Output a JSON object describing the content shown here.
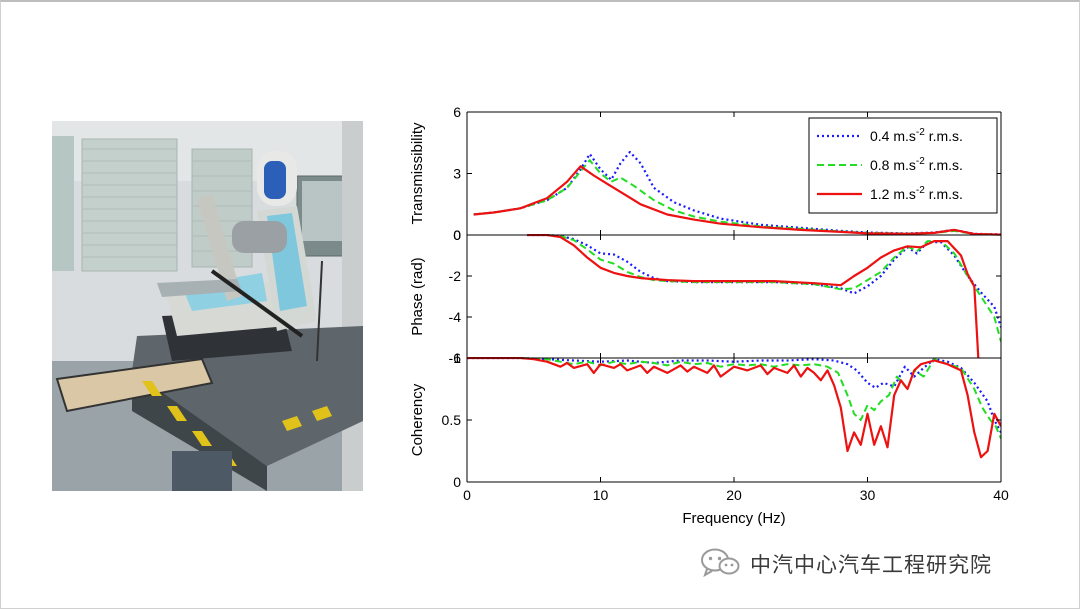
{
  "photo": {
    "icon": "seat-test-rig-photo"
  },
  "watermark": {
    "icon": "wechat-logo-icon",
    "text": "中汽中心汽车工程研究院"
  },
  "colors": {
    "series1": "#1a1aff",
    "series2": "#22dd22",
    "series3": "#ee1111"
  },
  "chart_data": {
    "type": "line",
    "xlabel": "Frequency (Hz)",
    "xlim": [
      0,
      40
    ],
    "xticks": [
      "0",
      "10",
      "20",
      "30",
      "40"
    ],
    "legend": {
      "position": "top-right",
      "entries": [
        {
          "base": "0.4 m.s",
          "sup": "-2",
          "tail": " r.m.s."
        },
        {
          "base": "0.8 m.s",
          "sup": "-2",
          "tail": " r.m.s."
        },
        {
          "base": "1.2 m.s",
          "sup": "-2",
          "tail": " r.m.s."
        }
      ]
    },
    "panels": [
      {
        "ylabel": "Transmissibility",
        "ylim": [
          0,
          6
        ],
        "yticks": [
          {
            "v": 0,
            "t": "0"
          },
          {
            "v": 3,
            "t": "3"
          },
          {
            "v": 6,
            "t": "6"
          }
        ],
        "series": [
          {
            "style": "dotted",
            "x": [
              0.5,
              2,
              4,
              6,
              7.5,
              8.5,
              9.2,
              10,
              10.8,
              11.5,
              12.2,
              13,
              14,
              15.5,
              17,
              19,
              22,
              25,
              28,
              30,
              33,
              35,
              36.5,
              38,
              40
            ],
            "y": [
              1.0,
              1.1,
              1.3,
              1.7,
              2.3,
              3.2,
              3.95,
              3.2,
              2.7,
              3.5,
              4.05,
              3.5,
              2.3,
              1.6,
              1.2,
              0.8,
              0.5,
              0.35,
              0.2,
              0.12,
              0.08,
              0.12,
              0.25,
              0.06,
              0.03
            ]
          },
          {
            "style": "dashed",
            "x": [
              0.5,
              2,
              4,
              6,
              7.5,
              8.5,
              9.2,
              10,
              10.8,
              11.5,
              12.5,
              14,
              15.5,
              17,
              19,
              22,
              25,
              28,
              30,
              33,
              35,
              36.5,
              38,
              40
            ],
            "y": [
              1.0,
              1.1,
              1.3,
              1.7,
              2.3,
              3.1,
              3.65,
              3.0,
              2.6,
              2.8,
              2.4,
              1.7,
              1.2,
              0.9,
              0.65,
              0.42,
              0.3,
              0.17,
              0.1,
              0.07,
              0.1,
              0.2,
              0.05,
              0.02
            ]
          },
          {
            "style": "solid",
            "x": [
              0.5,
              2,
              4,
              6,
              7.5,
              8.5,
              9.5,
              10.5,
              11.5,
              13,
              15,
              17,
              19,
              22,
              25,
              28,
              30,
              33,
              35,
              36.5,
              38,
              40
            ],
            "y": [
              1.0,
              1.1,
              1.3,
              1.8,
              2.6,
              3.35,
              2.9,
              2.5,
              2.1,
              1.5,
              1.0,
              0.75,
              0.55,
              0.38,
              0.25,
              0.15,
              0.08,
              0.06,
              0.1,
              0.25,
              0.05,
              0.02
            ]
          }
        ]
      },
      {
        "ylabel": "Phase (rad)",
        "ylim": [
          -6,
          0
        ],
        "yticks": [
          {
            "v": 0,
            "t": "0"
          },
          {
            "v": -2,
            "t": "-2"
          },
          {
            "v": -4,
            "t": "-4"
          },
          {
            "v": -6,
            "t": "-6"
          }
        ],
        "series": [
          {
            "style": "dotted",
            "x": [
              4.5,
              6,
              7,
              8,
              9,
              10,
              11,
              12,
              13,
              14,
              15,
              17,
              20,
              23,
              26,
              28,
              29,
              30,
              31,
              32,
              33,
              33.7,
              34.5,
              35.5,
              36.5,
              37.5,
              38.5,
              39.5,
              40
            ],
            "y": [
              0,
              0,
              -0.05,
              -0.2,
              -0.5,
              -0.9,
              -0.95,
              -1.3,
              -1.8,
              -2.1,
              -2.25,
              -2.3,
              -2.3,
              -2.3,
              -2.4,
              -2.6,
              -2.85,
              -2.5,
              -2.0,
              -1.2,
              -0.6,
              -0.9,
              -0.35,
              -0.35,
              -1.0,
              -2.0,
              -2.8,
              -3.5,
              -4.5
            ]
          },
          {
            "style": "dashed",
            "x": [
              4.5,
              6,
              7,
              8,
              9,
              10,
              11,
              12,
              13,
              14,
              15,
              17,
              20,
              23,
              26,
              28,
              29,
              30,
              31,
              32,
              33,
              33.7,
              34.5,
              35.5,
              36.5,
              37.5,
              38.5,
              39.5,
              40
            ],
            "y": [
              0,
              0,
              -0.05,
              -0.25,
              -0.7,
              -1.2,
              -1.4,
              -1.8,
              -2.05,
              -2.2,
              -2.25,
              -2.3,
              -2.3,
              -2.3,
              -2.4,
              -2.65,
              -2.6,
              -2.2,
              -1.8,
              -1.1,
              -0.55,
              -0.8,
              -0.3,
              -0.3,
              -0.9,
              -2.0,
              -3.0,
              -4.0,
              -5.2
            ]
          },
          {
            "style": "solid",
            "x": [
              4.5,
              6,
              7,
              8,
              9,
              10,
              11,
              12,
              13,
              14,
              15,
              17,
              20,
              23,
              26,
              28,
              29,
              30,
              31,
              32,
              33,
              34,
              35,
              36,
              37,
              37.5,
              38,
              38.3
            ],
            "y": [
              0,
              0,
              -0.1,
              -0.5,
              -1.1,
              -1.6,
              -1.85,
              -2.0,
              -2.1,
              -2.15,
              -2.2,
              -2.25,
              -2.25,
              -2.25,
              -2.35,
              -2.45,
              -2.0,
              -1.6,
              -1.1,
              -0.75,
              -0.55,
              -0.6,
              -0.3,
              -0.3,
              -1.0,
              -1.9,
              -2.5,
              -6.0
            ]
          }
        ]
      },
      {
        "ylabel": "Coherency",
        "ylim": [
          0,
          1
        ],
        "yticks": [
          {
            "v": 0,
            "t": "0"
          },
          {
            "v": 0.5,
            "t": "0.5"
          },
          {
            "v": 1,
            "t": "1"
          }
        ],
        "series": [
          {
            "style": "dotted",
            "x": [
              0,
              4,
              6,
              8,
              10,
              12,
              14,
              16,
              18,
              20,
              22,
              24,
              26,
              27.5,
              28.5,
              29.2,
              30,
              30.6,
              31.2,
              32,
              32.8,
              33.5,
              34.2,
              35,
              36,
              37,
              38,
              39,
              39.5,
              40
            ],
            "y": [
              1,
              1,
              0.99,
              0.98,
              0.97,
              0.98,
              0.96,
              0.98,
              0.98,
              0.97,
              0.98,
              0.98,
              0.99,
              0.98,
              0.95,
              0.9,
              0.8,
              0.76,
              0.8,
              0.77,
              0.93,
              0.85,
              0.92,
              0.99,
              0.97,
              0.92,
              0.8,
              0.65,
              0.5,
              0.4
            ]
          },
          {
            "style": "dashed",
            "x": [
              0,
              4,
              6,
              7,
              8,
              9,
              10,
              11,
              12,
              13,
              14,
              15,
              16,
              17,
              18,
              19,
              20,
              21,
              22,
              23,
              24,
              25,
              26,
              27,
              27.8,
              28.5,
              29,
              29.5,
              30,
              30.5,
              31,
              31.6,
              32.2,
              33,
              33.5,
              34.2,
              35,
              36,
              37,
              38,
              38.6,
              39.2,
              39.6,
              40
            ],
            "y": [
              1,
              1,
              0.99,
              0.97,
              0.95,
              0.97,
              0.94,
              0.97,
              0.95,
              0.97,
              0.96,
              0.94,
              0.97,
              0.95,
              0.96,
              0.93,
              0.95,
              0.94,
              0.95,
              0.93,
              0.95,
              0.94,
              0.95,
              0.93,
              0.88,
              0.7,
              0.55,
              0.5,
              0.62,
              0.58,
              0.65,
              0.7,
              0.85,
              0.75,
              0.9,
              0.85,
              0.99,
              0.95,
              0.92,
              0.75,
              0.6,
              0.5,
              0.45,
              0.35
            ]
          },
          {
            "style": "solid",
            "x": [
              0,
              4,
              5,
              6,
              7,
              7.5,
              8,
              9,
              9.5,
              10,
              11,
              11.5,
              12,
              13,
              13.5,
              14,
              15,
              16,
              16.5,
              17,
              18,
              18.5,
              19,
              20,
              21,
              22,
              22.5,
              23,
              24,
              24.5,
              25,
              25.5,
              26,
              26.5,
              27,
              27.5,
              28,
              28.5,
              29,
              29.5,
              30,
              30.5,
              31,
              31.5,
              32,
              32.5,
              33,
              33.5,
              34,
              35,
              36,
              37,
              37.5,
              38,
              38.5,
              39,
              39.5,
              40
            ],
            "y": [
              1,
              1,
              0.99,
              0.97,
              0.93,
              0.96,
              0.92,
              0.95,
              0.88,
              0.95,
              0.92,
              0.95,
              0.9,
              0.94,
              0.88,
              0.93,
              0.88,
              0.94,
              0.89,
              0.93,
              0.88,
              0.94,
              0.85,
              0.93,
              0.9,
              0.94,
              0.87,
              0.92,
              0.88,
              0.94,
              0.85,
              0.92,
              0.88,
              0.82,
              0.9,
              0.78,
              0.6,
              0.25,
              0.4,
              0.3,
              0.55,
              0.3,
              0.45,
              0.28,
              0.7,
              0.82,
              0.75,
              0.9,
              0.95,
              0.98,
              0.95,
              0.9,
              0.7,
              0.4,
              0.2,
              0.25,
              0.55,
              0.45
            ]
          }
        ]
      }
    ]
  }
}
